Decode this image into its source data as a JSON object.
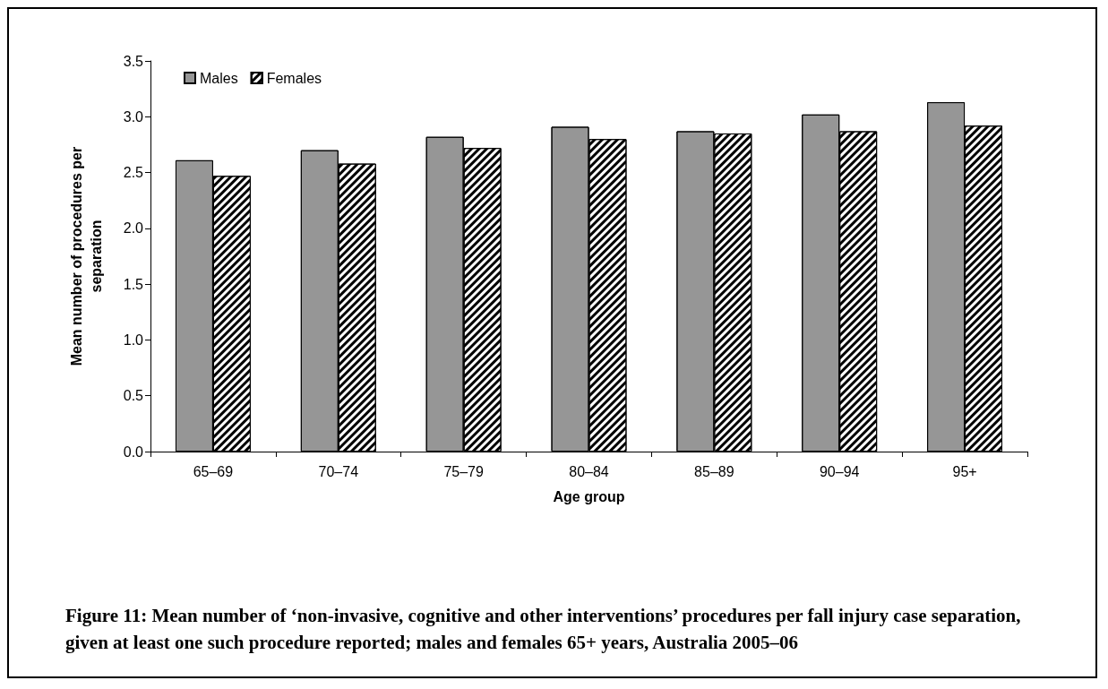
{
  "chart_data": {
    "type": "bar",
    "title": "Figure 11: Mean number of ‘non-invasive, cognitive and other interventions’ procedures per fall injury case separation, given at least one such procedure reported; males and females 65+ years, Australia 2005–06",
    "xlabel": "Age group",
    "ylabel": "Mean number of procedures per separation",
    "categories": [
      "65–69",
      "70–74",
      "75–79",
      "80–84",
      "85–89",
      "90–94",
      "95+"
    ],
    "series": [
      {
        "name": "Males",
        "color": "#969696",
        "values": [
          2.61,
          2.7,
          2.82,
          2.91,
          2.87,
          3.02,
          3.13
        ]
      },
      {
        "name": "Females",
        "color": "#ffffff",
        "values": [
          2.47,
          2.58,
          2.72,
          2.8,
          2.85,
          2.87,
          2.92
        ]
      }
    ],
    "ylim": [
      0,
      3.5
    ],
    "yticks": [
      {
        "value": 0,
        "label": "0.0"
      },
      0.5,
      {
        "value": 1,
        "label": "1.0"
      },
      1.5,
      {
        "value": 2,
        "label": "2.0"
      },
      2.5,
      {
        "value": 3,
        "label": "3.0"
      },
      3.5
    ],
    "grid": false,
    "legend": "top left"
  }
}
